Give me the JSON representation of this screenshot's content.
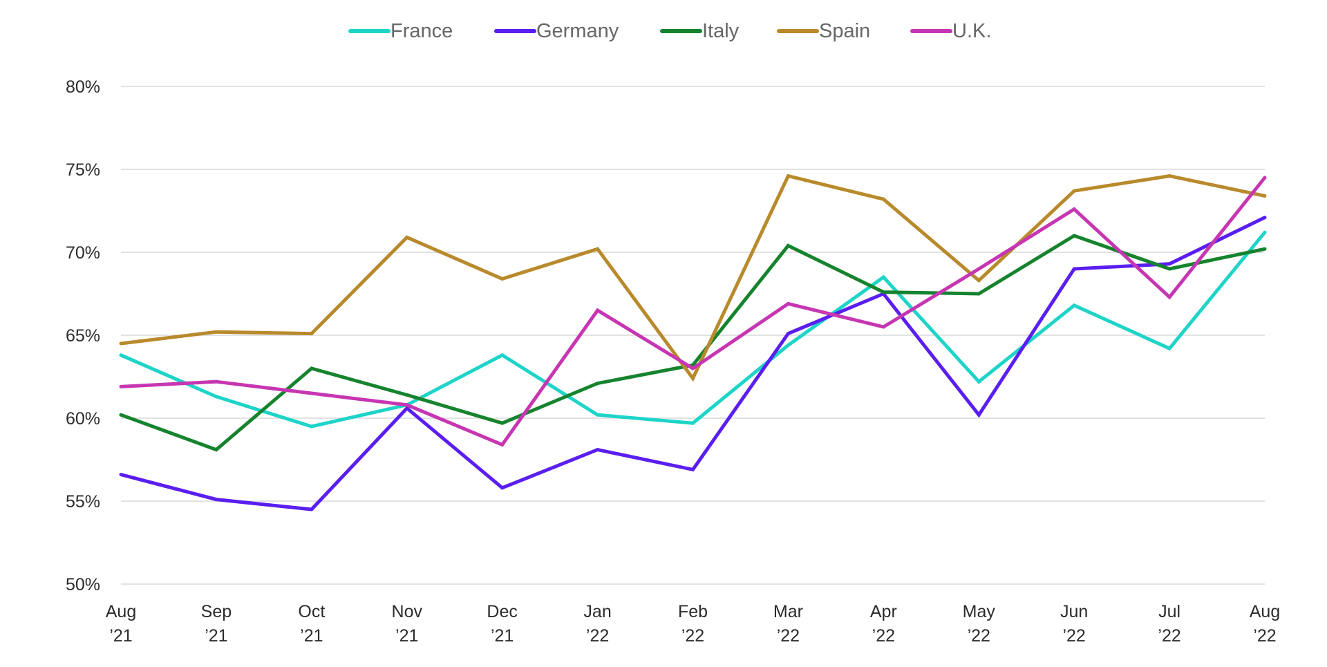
{
  "chart_data": {
    "type": "line",
    "title": "",
    "xlabel": "",
    "ylabel": "",
    "ylim": [
      50,
      80
    ],
    "y_ticks": [
      50,
      55,
      60,
      65,
      70,
      75,
      80
    ],
    "y_tick_labels": [
      "50%",
      "55%",
      "60%",
      "65%",
      "70%",
      "75%",
      "80%"
    ],
    "grid": true,
    "legend_position": "top-center",
    "categories": [
      [
        "Aug",
        "’21"
      ],
      [
        "Sep",
        "’21"
      ],
      [
        "Oct",
        "’21"
      ],
      [
        "Nov",
        "’21"
      ],
      [
        "Dec",
        "’21"
      ],
      [
        "Jan",
        "’22"
      ],
      [
        "Feb",
        "’22"
      ],
      [
        "Mar",
        "’22"
      ],
      [
        "Apr",
        "’22"
      ],
      [
        "May",
        "’22"
      ],
      [
        "Jun",
        "’22"
      ],
      [
        "Jul",
        "’22"
      ],
      [
        "Aug",
        "’22"
      ]
    ],
    "series": [
      {
        "name": "France",
        "color": "#1ed4c8",
        "values": [
          63.8,
          61.3,
          59.5,
          60.8,
          63.8,
          60.2,
          59.7,
          64.4,
          68.5,
          62.2,
          66.8,
          64.2,
          71.2
        ]
      },
      {
        "name": "Germany",
        "color": "#5a1ef0",
        "values": [
          56.6,
          55.1,
          54.5,
          60.6,
          55.8,
          58.1,
          56.9,
          65.1,
          67.5,
          60.2,
          69.0,
          69.3,
          72.1
        ]
      },
      {
        "name": "Italy",
        "color": "#16832e",
        "values": [
          60.2,
          58.1,
          63.0,
          61.4,
          59.7,
          62.1,
          63.2,
          70.4,
          67.6,
          67.5,
          71.0,
          69.0,
          70.2
        ]
      },
      {
        "name": "Spain",
        "color": "#b88a2c",
        "values": [
          64.5,
          65.2,
          65.1,
          70.9,
          68.4,
          70.2,
          62.4,
          74.6,
          73.2,
          68.3,
          73.7,
          74.6,
          73.4
        ]
      },
      {
        "name": "U.K.",
        "color": "#c736b2",
        "values": [
          61.9,
          62.2,
          61.5,
          60.8,
          58.4,
          66.5,
          63.0,
          66.9,
          65.5,
          69.0,
          72.6,
          67.3,
          74.5
        ]
      }
    ]
  }
}
